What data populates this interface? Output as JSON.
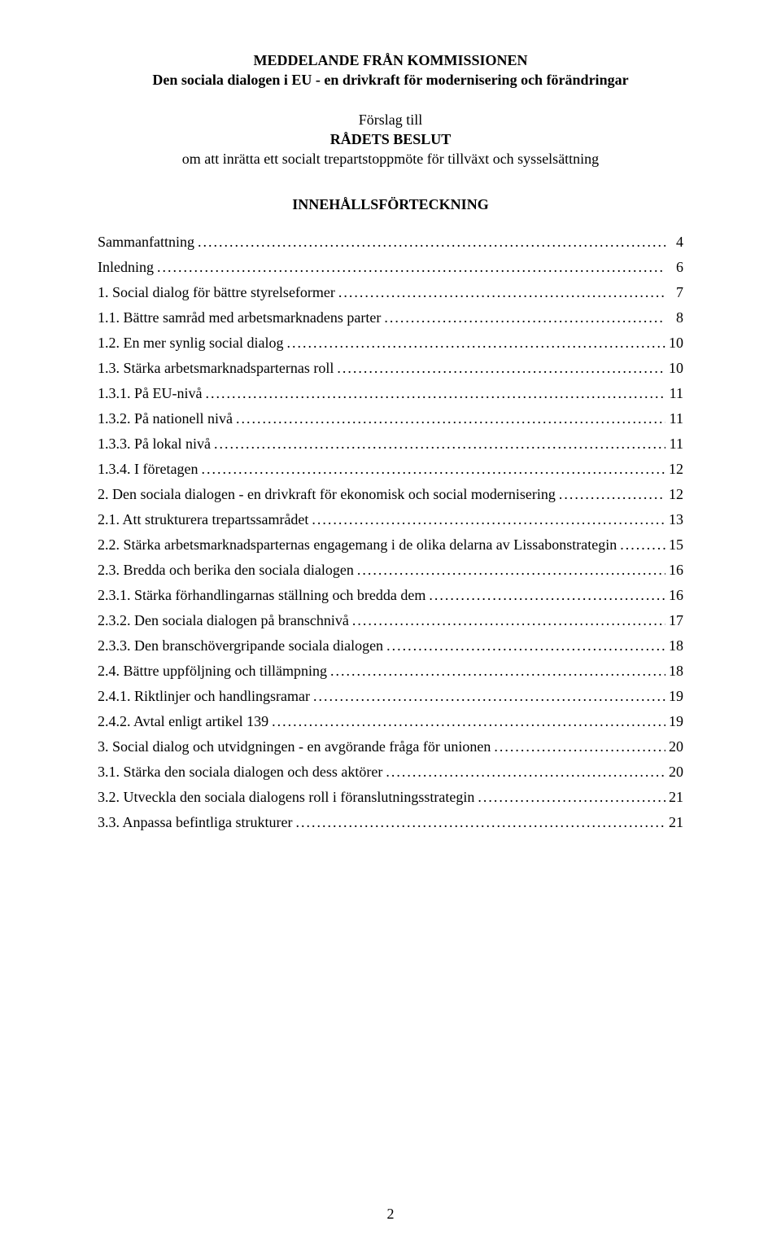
{
  "header": {
    "title": "MEDDELANDE FRÅN KOMMISSIONEN",
    "subtitle": "Den sociala dialogen i EU - en drivkraft för modernisering och förändringar",
    "proposal_line1": "Förslag till",
    "proposal_line2": "RÅDETS BESLUT",
    "proposal_line3": "om att inrätta ett socialt trepartstoppmöte för tillväxt och sysselsättning"
  },
  "toc": {
    "heading": "INNEHÅLLSFÖRTECKNING",
    "entries": [
      {
        "label": "Sammanfattning",
        "page": "4"
      },
      {
        "label": "Inledning",
        "page": "6"
      },
      {
        "label": "1. Social dialog för bättre styrelseformer",
        "page": "7"
      },
      {
        "label": "1.1. Bättre samråd med arbetsmarknadens parter",
        "page": "8"
      },
      {
        "label": "1.2. En mer synlig social dialog",
        "page": "10"
      },
      {
        "label": "1.3. Stärka arbetsmarknadsparternas roll",
        "page": "10"
      },
      {
        "label": "1.3.1. På EU-nivå",
        "page": "11"
      },
      {
        "label": "1.3.2. På nationell nivå",
        "page": "11"
      },
      {
        "label": "1.3.3. På lokal nivå",
        "page": "11"
      },
      {
        "label": "1.3.4. I företagen",
        "page": "12"
      },
      {
        "label": "2. Den sociala dialogen - en drivkraft för ekonomisk och social modernisering",
        "page": "12"
      },
      {
        "label": "2.1. Att strukturera trepartssamrådet",
        "page": "13"
      },
      {
        "label": "2.2. Stärka arbetsmarknadsparternas engagemang i de olika delarna av Lissabonstrategin",
        "page": "15"
      },
      {
        "label": "2.3. Bredda och berika den sociala dialogen",
        "page": "16"
      },
      {
        "label": "2.3.1. Stärka förhandlingarnas ställning och bredda dem",
        "page": "16"
      },
      {
        "label": "2.3.2. Den sociala dialogen på branschnivå",
        "page": "17"
      },
      {
        "label": "2.3.3. Den branschövergripande sociala dialogen",
        "page": "18"
      },
      {
        "label": "2.4. Bättre uppföljning och tillämpning",
        "page": "18"
      },
      {
        "label": "2.4.1. Riktlinjer och handlingsramar",
        "page": "19"
      },
      {
        "label": "2.4.2. Avtal enligt artikel 139",
        "page": "19"
      },
      {
        "label": "3. Social dialog och utvidgningen - en avgörande fråga för unionen",
        "page": "20"
      },
      {
        "label": "3.1. Stärka den sociala dialogen och dess aktörer",
        "page": "20"
      },
      {
        "label": "3.2. Utveckla den sociala dialogens roll i föranslutningsstrategin",
        "page": "21"
      },
      {
        "label": "3.3. Anpassa befintliga strukturer",
        "page": "21"
      }
    ]
  },
  "page_number": "2"
}
